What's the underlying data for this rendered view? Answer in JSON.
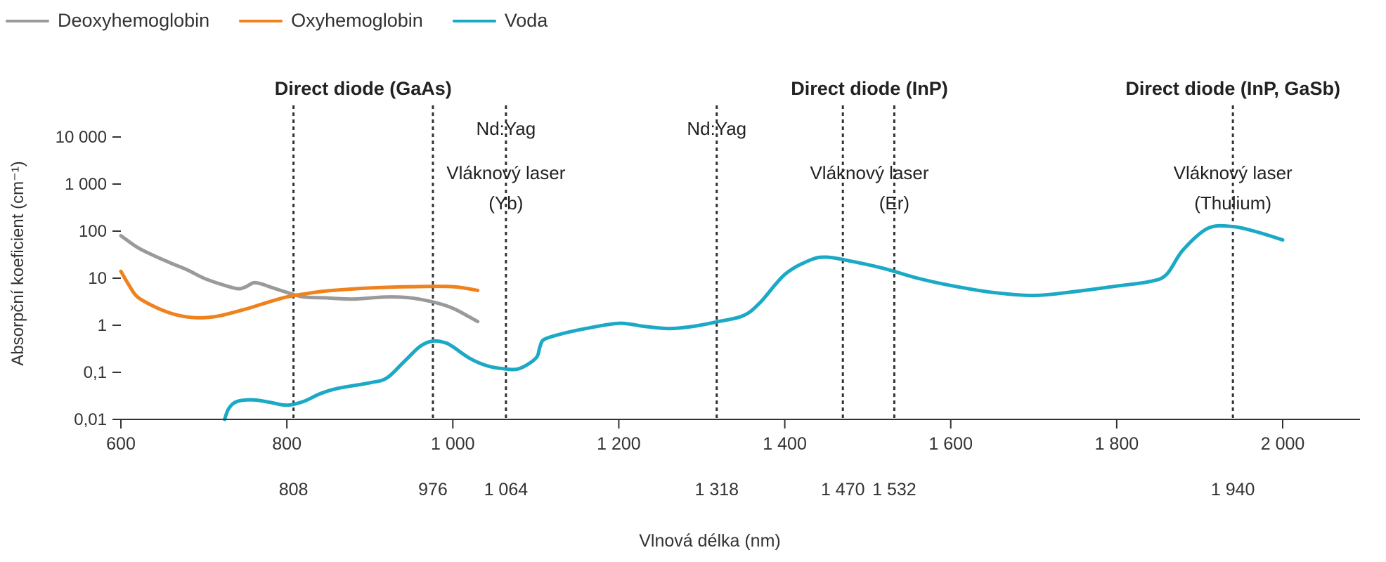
{
  "chart_data": {
    "type": "line",
    "xlabel": "Vlnová délka (nm)",
    "ylabel": "Absorpční koeficient (cm⁻¹)",
    "y_scale": "log",
    "xlim": [
      600,
      2000
    ],
    "ylim": [
      0.01,
      10000
    ],
    "grid": false,
    "legend_position": "top-left",
    "x_ticks": [
      {
        "value": 600,
        "label": "600"
      },
      {
        "value": 800,
        "label": "800"
      },
      {
        "value": 1000,
        "label": "1 000"
      },
      {
        "value": 1200,
        "label": "1 200"
      },
      {
        "value": 1400,
        "label": "1 400"
      },
      {
        "value": 1600,
        "label": "1 600"
      },
      {
        "value": 1800,
        "label": "1 800"
      },
      {
        "value": 2000,
        "label": "2 000"
      }
    ],
    "y_ticks": [
      {
        "value": 10000,
        "label": "10 000"
      },
      {
        "value": 1000,
        "label": "1 000"
      },
      {
        "value": 100,
        "label": "100"
      },
      {
        "value": 10,
        "label": "10"
      },
      {
        "value": 1,
        "label": "1"
      },
      {
        "value": 0.1,
        "label": "0,1"
      },
      {
        "value": 0.01,
        "label": "0,01"
      }
    ],
    "series": [
      {
        "name": "Deoxyhemoglobin",
        "color": "#9a9a9a",
        "points": [
          [
            600,
            80
          ],
          [
            620,
            45
          ],
          [
            640,
            30
          ],
          [
            660,
            21
          ],
          [
            680,
            15
          ],
          [
            700,
            10
          ],
          [
            720,
            7.5
          ],
          [
            740,
            6
          ],
          [
            750,
            6.5
          ],
          [
            760,
            8
          ],
          [
            770,
            7.5
          ],
          [
            780,
            6.5
          ],
          [
            800,
            5
          ],
          [
            820,
            4
          ],
          [
            850,
            3.8
          ],
          [
            880,
            3.6
          ],
          [
            920,
            4
          ],
          [
            950,
            3.8
          ],
          [
            980,
            3
          ],
          [
            1000,
            2.3
          ],
          [
            1020,
            1.5
          ],
          [
            1030,
            1.2
          ]
        ]
      },
      {
        "name": "Oxyhemoglobin",
        "color": "#f0821e",
        "points": [
          [
            600,
            14
          ],
          [
            610,
            7
          ],
          [
            620,
            4
          ],
          [
            640,
            2.5
          ],
          [
            660,
            1.8
          ],
          [
            680,
            1.5
          ],
          [
            700,
            1.45
          ],
          [
            720,
            1.6
          ],
          [
            750,
            2.2
          ],
          [
            780,
            3.2
          ],
          [
            800,
            4
          ],
          [
            820,
            4.6
          ],
          [
            850,
            5.4
          ],
          [
            900,
            6.2
          ],
          [
            950,
            6.6
          ],
          [
            1000,
            6.6
          ],
          [
            1030,
            5.5
          ]
        ]
      },
      {
        "name": "Voda",
        "color": "#1ba9c6",
        "points": [
          [
            725,
            0.01
          ],
          [
            730,
            0.017
          ],
          [
            740,
            0.024
          ],
          [
            760,
            0.026
          ],
          [
            780,
            0.023
          ],
          [
            800,
            0.02
          ],
          [
            820,
            0.024
          ],
          [
            840,
            0.035
          ],
          [
            860,
            0.045
          ],
          [
            900,
            0.06
          ],
          [
            920,
            0.075
          ],
          [
            940,
            0.16
          ],
          [
            960,
            0.35
          ],
          [
            975,
            0.46
          ],
          [
            990,
            0.43
          ],
          [
            1000,
            0.35
          ],
          [
            1020,
            0.2
          ],
          [
            1040,
            0.14
          ],
          [
            1060,
            0.12
          ],
          [
            1080,
            0.12
          ],
          [
            1100,
            0.2
          ],
          [
            1105,
            0.35
          ],
          [
            1110,
            0.5
          ],
          [
            1130,
            0.65
          ],
          [
            1160,
            0.85
          ],
          [
            1200,
            1.1
          ],
          [
            1230,
            0.95
          ],
          [
            1260,
            0.85
          ],
          [
            1290,
            0.95
          ],
          [
            1320,
            1.2
          ],
          [
            1350,
            1.6
          ],
          [
            1370,
            3
          ],
          [
            1400,
            12
          ],
          [
            1430,
            24
          ],
          [
            1450,
            28
          ],
          [
            1480,
            23
          ],
          [
            1520,
            16
          ],
          [
            1560,
            10
          ],
          [
            1600,
            7
          ],
          [
            1650,
            5
          ],
          [
            1700,
            4.3
          ],
          [
            1750,
            5.2
          ],
          [
            1800,
            6.8
          ],
          [
            1840,
            8.5
          ],
          [
            1860,
            12
          ],
          [
            1880,
            40
          ],
          [
            1910,
            115
          ],
          [
            1940,
            125
          ],
          [
            1970,
            95
          ],
          [
            2000,
            65
          ]
        ]
      }
    ],
    "wavelength_markers": [
      {
        "value": 808,
        "label": "808"
      },
      {
        "value": 976,
        "label": "976"
      },
      {
        "value": 1064,
        "label": "1 064"
      },
      {
        "value": 1318,
        "label": "1 318"
      },
      {
        "value": 1470,
        "label": "1 470"
      },
      {
        "value": 1532,
        "label": "1 532"
      },
      {
        "value": 1940,
        "label": "1 940"
      }
    ],
    "annotations": [
      {
        "text": "Direct diode (GaAs)",
        "x": 892,
        "row": "header",
        "bold": true
      },
      {
        "text": "Direct diode (InP)",
        "x": 1502,
        "row": "header",
        "bold": true
      },
      {
        "text": "Direct diode (InP, GaSb)",
        "x": 1940,
        "row": "header",
        "bold": true
      },
      {
        "text": "Nd:Yag",
        "x": 1064,
        "row": "row1",
        "bold": false
      },
      {
        "text": "Nd:Yag",
        "x": 1318,
        "row": "row1",
        "bold": false
      },
      {
        "text": "Vláknový laser",
        "x": 1064,
        "row": "row2",
        "bold": false
      },
      {
        "text": "(Yb)",
        "x": 1064,
        "row": "row3",
        "bold": false
      },
      {
        "text": "Vláknový laser",
        "x": 1502,
        "row": "row2",
        "bold": false
      },
      {
        "text": "(Er)",
        "x": 1532,
        "row": "row3",
        "bold": false
      },
      {
        "text": "Vláknový laser",
        "x": 1940,
        "row": "row2",
        "bold": false
      },
      {
        "text": "(Thulium)",
        "x": 1940,
        "row": "row3",
        "bold": false
      }
    ]
  }
}
